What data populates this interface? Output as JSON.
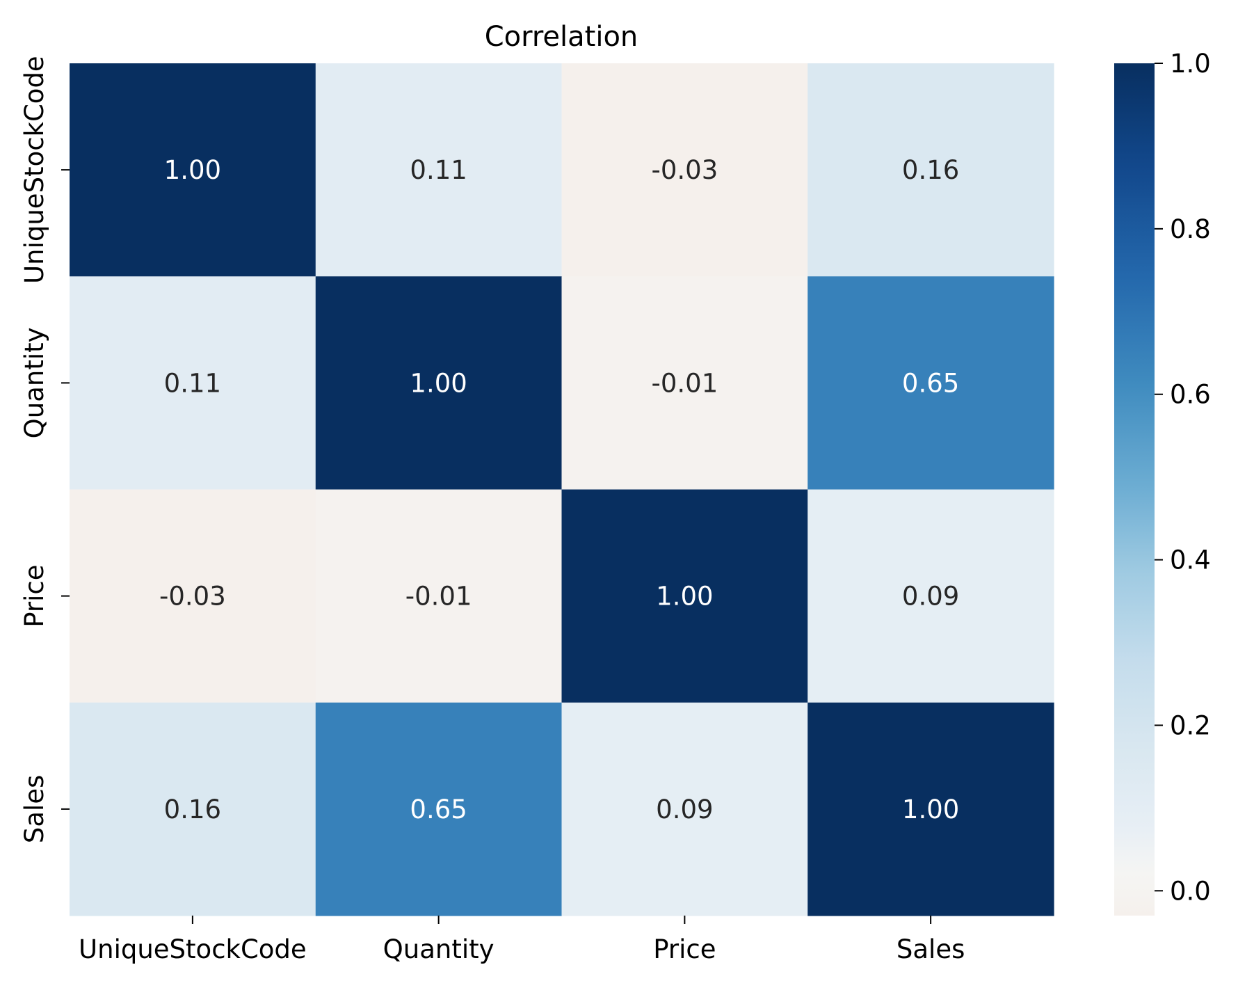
{
  "chart_data": {
    "type": "heatmap",
    "title": "Correlation",
    "xlabel": "",
    "ylabel": "",
    "x_categories": [
      "UniqueStockCode",
      "Quantity",
      "Price",
      "Sales"
    ],
    "y_categories": [
      "UniqueStockCode",
      "Quantity",
      "Price",
      "Sales"
    ],
    "values": [
      [
        1.0,
        0.11,
        -0.03,
        0.16
      ],
      [
        0.11,
        1.0,
        -0.01,
        0.65
      ],
      [
        -0.03,
        -0.01,
        1.0,
        0.09
      ],
      [
        0.16,
        0.65,
        0.09,
        1.0
      ]
    ],
    "value_labels": [
      [
        "1.00",
        "0.11",
        "-0.03",
        "0.16"
      ],
      [
        "0.11",
        "1.00",
        "-0.01",
        "0.65"
      ],
      [
        "-0.03",
        "-0.01",
        "1.00",
        "0.09"
      ],
      [
        "0.16",
        "0.65",
        "0.09",
        "1.00"
      ]
    ],
    "colormap": "Blues",
    "vmin": -0.03,
    "vmax": 1.0,
    "colorbar": {
      "ticks": [
        0.0,
        0.2,
        0.4,
        0.6,
        0.8,
        1.0
      ],
      "tick_labels": [
        "0.0",
        "0.2",
        "0.4",
        "0.6",
        "0.8",
        "1.0"
      ]
    },
    "grid": false,
    "legend": "colorbar-right"
  }
}
